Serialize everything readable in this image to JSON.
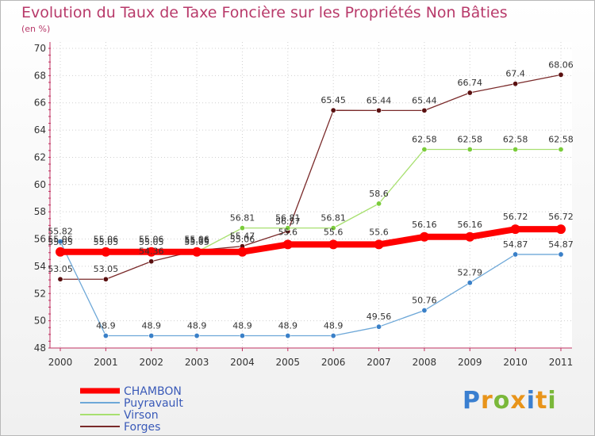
{
  "title": "Evolution du Taux de Taxe Foncière sur les Propriétés Non Bâties",
  "unit_label": "(en %)",
  "logo": {
    "text": "Proxiti",
    "colors": [
      "#3a7fd0",
      "#e8941a",
      "#7ab83a",
      "#e8941a",
      "#3a7fd0",
      "#e8941a",
      "#7ab83a"
    ]
  },
  "chart_data": {
    "type": "line",
    "x": [
      "2000",
      "2001",
      "2002",
      "2003",
      "2004",
      "2005",
      "2006",
      "2007",
      "2008",
      "2009",
      "2010",
      "2011"
    ],
    "ylim": [
      48,
      70
    ],
    "yticks": [
      "48",
      "50",
      "52",
      "54",
      "56",
      "58",
      "60",
      "62",
      "64",
      "66",
      "68",
      "70"
    ],
    "grid": true,
    "legend_position": "bottom-left",
    "series": [
      {
        "name": "Forges",
        "color": "#7a2a2a",
        "marker": "#5a1010",
        "values": [
          53.05,
          53.05,
          54.36,
          55.16,
          55.47,
          56.57,
          65.45,
          65.44,
          65.44,
          66.74,
          67.4,
          68.06
        ],
        "labels": [
          "53.05",
          "53.05",
          "54.36",
          "55.16",
          "55.47",
          "56.57",
          "65.45",
          "65.44",
          "65.44",
          "66.74",
          "67.4",
          "68.06"
        ]
      },
      {
        "name": "Virson",
        "color": "#a8e070",
        "marker": "#7acc3a",
        "values": [
          55.05,
          55.05,
          55.05,
          55.05,
          56.81,
          56.81,
          56.81,
          58.6,
          62.58,
          62.58,
          62.58,
          62.58
        ],
        "labels": [
          "55.05",
          "55.05",
          "55.05",
          "55.05",
          "56.81",
          "56.81",
          "56.81",
          "58.6",
          "62.58",
          "62.58",
          "62.58",
          "62.58"
        ]
      },
      {
        "name": "Puyravault",
        "color": "#6ea8d8",
        "marker": "#3a80c8",
        "values": [
          55.82,
          48.9,
          48.9,
          48.9,
          48.9,
          48.9,
          48.9,
          49.56,
          50.76,
          52.79,
          54.87,
          54.87
        ],
        "labels": [
          "55.82",
          "48.9",
          "48.9",
          "48.9",
          "48.9",
          "48.9",
          "48.9",
          "49.56",
          "50.76",
          "52.79",
          "54.87",
          "54.87"
        ]
      },
      {
        "name": "CHAMBON",
        "color": "#ff0000",
        "marker": "#ff0000",
        "values": [
          55.06,
          55.06,
          55.06,
          55.06,
          55.06,
          55.6,
          55.6,
          55.6,
          56.16,
          56.16,
          56.72,
          56.72
        ],
        "labels": [
          "55.06",
          "55.06",
          "55.06",
          "55.06",
          "55.06",
          "55.6",
          "55.6",
          "55.6",
          "56.16",
          "56.16",
          "56.72",
          "56.72"
        ]
      }
    ],
    "legend": [
      "CHAMBON",
      "Puyravault",
      "Virson",
      "Forges"
    ],
    "legend_colors": [
      "#ff0000",
      "#6ea8d8",
      "#a8e070",
      "#7a2a2a"
    ],
    "legend_text_colors": [
      "#3a5ab8",
      "#3a5ab8",
      "#3a5ab8",
      "#3a5ab8"
    ]
  }
}
